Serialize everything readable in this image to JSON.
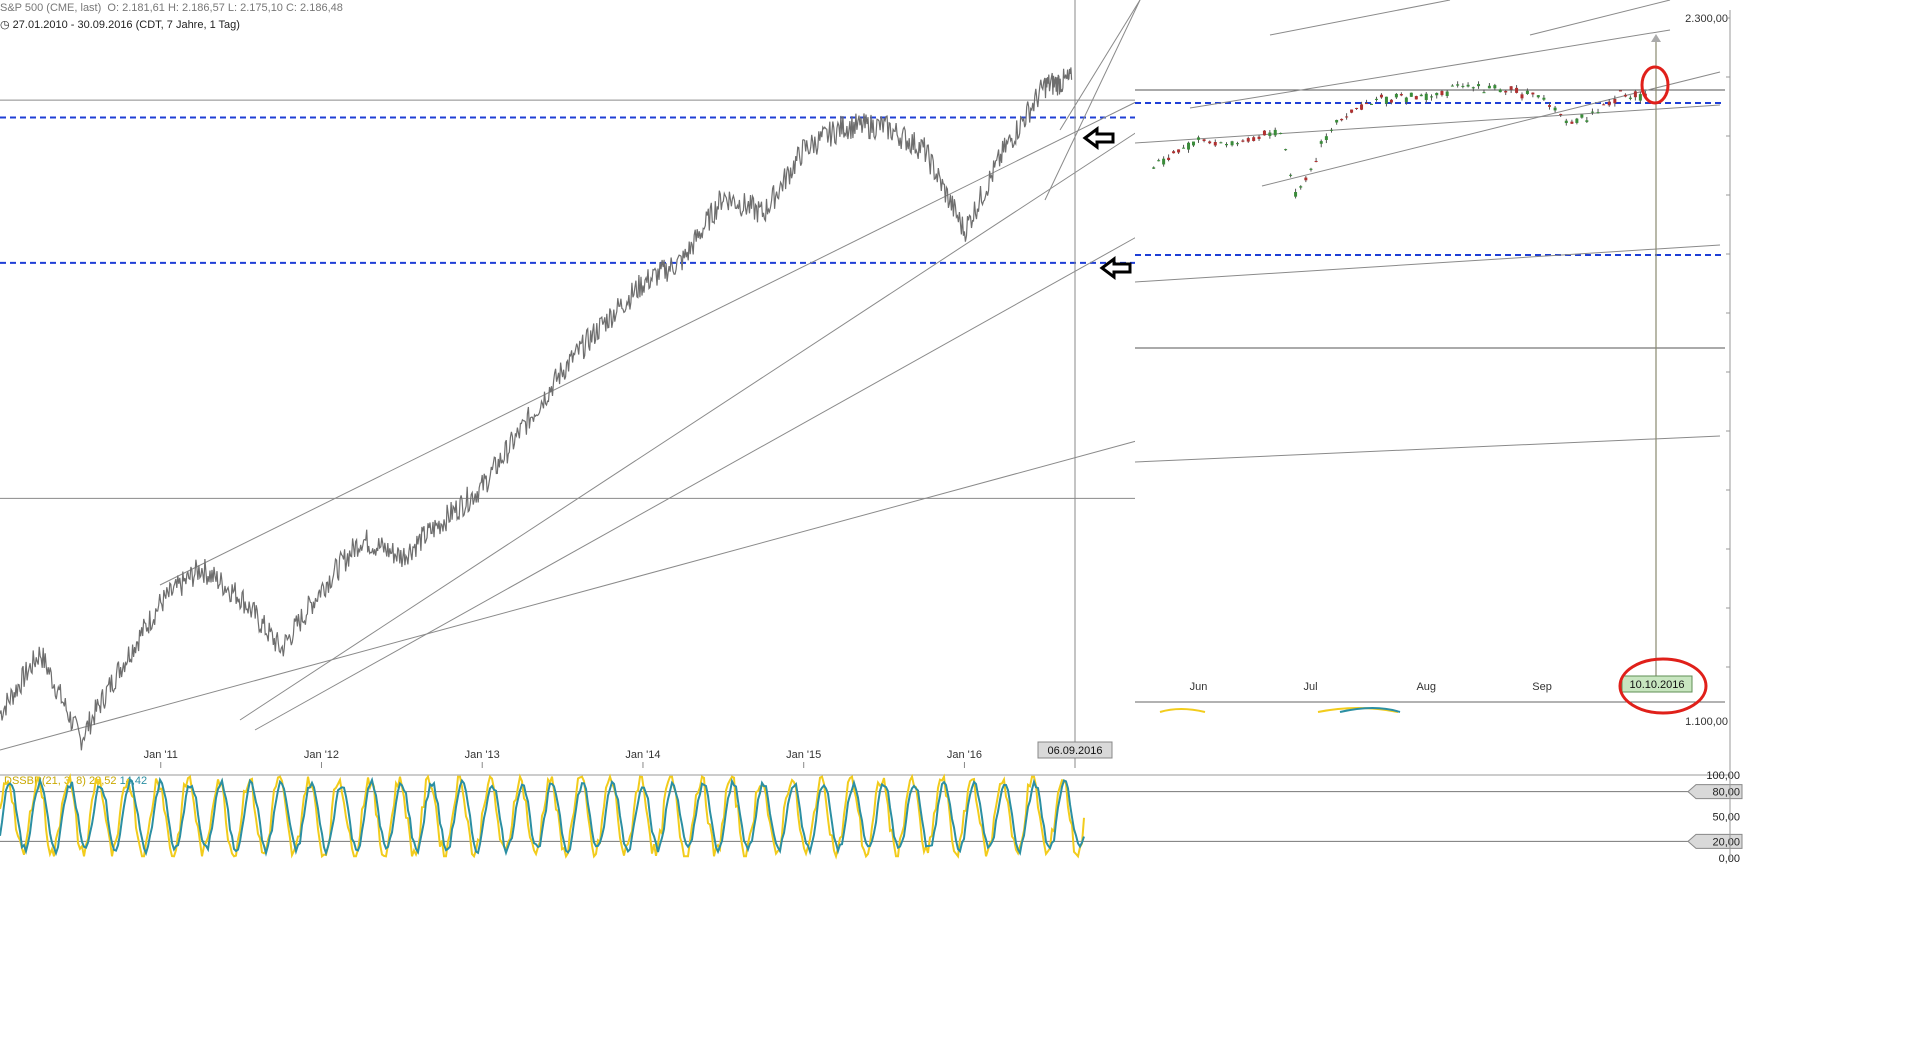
{
  "header": {
    "instrument": "S&P 500 (CME, last)",
    "ohlc": "O: 2.181,61  H: 2.186,57  L: 2.175,10  C: 2.186,48",
    "range": "27.01.2010 - 30.09.2016 (CDT, 7 Jahre, 1 Tag)"
  },
  "colors": {
    "price": "#6e6e6e",
    "support_dashed": "#1f3fd6",
    "trendline": "#8a8a8a",
    "annotation": "#e0201a",
    "osc_yellow": "#f2cc1c",
    "osc_teal": "#2b8fa3",
    "arrow": "#000000"
  },
  "icons": [
    "clock-icon",
    "black-left-arrow-icon",
    "red-ellipse-annotation"
  ],
  "chart_data": [
    {
      "type": "line",
      "name": "main-price-chart",
      "title": "S&P 500 (CME, last)",
      "xlabel": "",
      "ylabel": "",
      "x_ticks": [
        "Jan '11",
        "Jan '12",
        "Jan '13",
        "Jan '14",
        "Jan '15",
        "Jan '16"
      ],
      "crosshair_date": "06.09.2016",
      "ylim": [
        1010,
        2300
      ],
      "series": [
        {
          "name": "S&P 500",
          "x": [
            "2010-01",
            "2010-04",
            "2010-07",
            "2010-10",
            "2011-01",
            "2011-04",
            "2011-07",
            "2011-10",
            "2012-01",
            "2012-04",
            "2012-07",
            "2012-10",
            "2013-01",
            "2013-04",
            "2013-07",
            "2013-10",
            "2014-01",
            "2014-04",
            "2014-07",
            "2014-10",
            "2015-01",
            "2015-04",
            "2015-07",
            "2015-10",
            "2016-01",
            "2016-04",
            "2016-07",
            "2016-09"
          ],
          "values": [
            1090,
            1195,
            1045,
            1170,
            1280,
            1340,
            1290,
            1200,
            1305,
            1390,
            1360,
            1420,
            1480,
            1580,
            1680,
            1760,
            1830,
            1870,
            1980,
            1950,
            2060,
            2100,
            2100,
            2060,
            1920,
            2060,
            2170,
            2180
          ]
        }
      ],
      "support_levels": [
        2115,
        1865
      ],
      "horizontal_lines": [
        2145,
        1460
      ]
    },
    {
      "type": "line",
      "name": "inset-price-chart",
      "x_ticks": [
        "Jun",
        "Jul",
        "Aug",
        "Sep"
      ],
      "y_tick_labels": [
        "2.300,00",
        "1.100,00"
      ],
      "end_marker_date": "10.10.2016",
      "series": [
        {
          "name": "S&P 500",
          "x": [
            "2016-05-20",
            "2016-06-01",
            "2016-06-10",
            "2016-06-23",
            "2016-06-27",
            "2016-07-08",
            "2016-07-20",
            "2016-08-01",
            "2016-08-15",
            "2016-08-31",
            "2016-09-09",
            "2016-09-13",
            "2016-09-22",
            "2016-09-30"
          ],
          "values": [
            2050,
            2095,
            2085,
            2110,
            2000,
            2130,
            2165,
            2170,
            2185,
            2170,
            2125,
            2130,
            2170,
            2168
          ]
        }
      ]
    },
    {
      "type": "line",
      "name": "oscillator",
      "label": "DSSBR(21, 3, 8)",
      "values_shown": [
        "28,52",
        "14,42"
      ],
      "y_tick_labels": [
        "100,00",
        "80,00",
        "50,00",
        "20,00",
        "0,00"
      ],
      "ylim": [
        0,
        100
      ],
      "reference_levels": [
        80,
        20
      ],
      "series": [
        {
          "name": "DSSBR",
          "cycles": 36,
          "last_value": 28.52
        },
        {
          "name": "Signal",
          "cycles": 36,
          "last_value": 14.42
        }
      ]
    }
  ]
}
